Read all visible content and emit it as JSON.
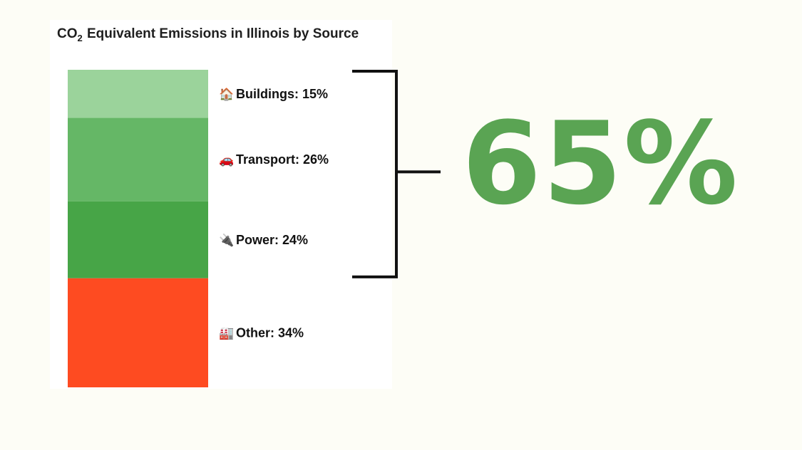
{
  "chart_data": {
    "type": "bar",
    "stacked": true,
    "title_main": "CO",
    "title_sub": "2",
    "title_rest": " Equivalent Emissions in Illinois by Source",
    "categories": [
      "Buildings",
      "Transport",
      "Power",
      "Other"
    ],
    "values": [
      15,
      26,
      24,
      34
    ],
    "unit": "%",
    "labels": [
      "Buildings: 15%",
      "Transport: 26%",
      "Power: 24%",
      "Other: 34%"
    ],
    "icons": [
      "house-icon",
      "car-icon",
      "plug-icon",
      "factory-icon"
    ],
    "colors": [
      "#9bd39b",
      "#65b766",
      "#47a547",
      "#fe4b21"
    ],
    "bracket": {
      "covers": [
        "Buildings",
        "Transport",
        "Power"
      ],
      "total_label": "65%",
      "color": "#111111"
    }
  },
  "accent_color": "#5aa453"
}
